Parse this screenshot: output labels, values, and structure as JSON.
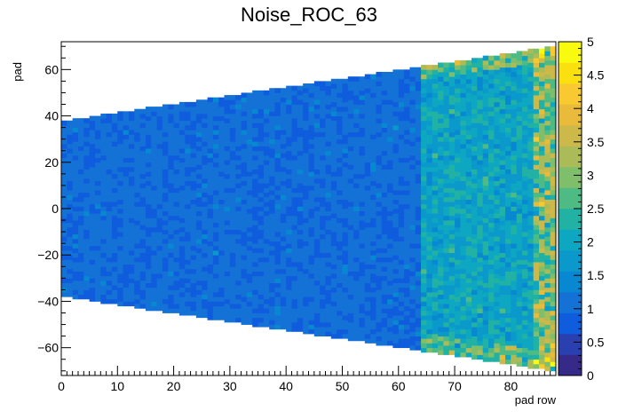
{
  "chart_data": {
    "type": "heatmap",
    "title": "Noise_ROC_63",
    "xlabel": "pad row",
    "ylabel": "pad",
    "xlim": [
      0,
      88
    ],
    "ylim": [
      -72,
      72
    ],
    "x_ticks": [
      "0",
      "10",
      "20",
      "30",
      "40",
      "50",
      "60",
      "70",
      "80"
    ],
    "y_ticks": [
      "−60",
      "−40",
      "−20",
      "0",
      "20",
      "40",
      "60"
    ],
    "colorbar": {
      "range": [
        0,
        5
      ],
      "ticks": [
        "0",
        "0.5",
        "1",
        "1.5",
        "2",
        "2.5",
        "3",
        "3.5",
        "4",
        "4.5",
        "5"
      ],
      "palette": [
        "#352a87",
        "#2a3fb0",
        "#0f5cdd",
        "#1472d6",
        "#0788d1",
        "#0b99cb",
        "#0ea7c2",
        "#21b2a4",
        "#4ebb85",
        "#7fbe6a",
        "#aabb57",
        "#cdb84a",
        "#eaba3a",
        "#f8c930",
        "#f9e00e",
        "#f9fb0e"
      ]
    },
    "rows": 88,
    "pads_at_row0": [
      -38,
      38
    ],
    "pads_at_row87": [
      -70,
      70
    ],
    "value_regions": [
      {
        "rows": [
          0,
          63
        ],
        "typical": 1.0
      },
      {
        "rows": [
          64,
          87
        ],
        "typical": 1.5,
        "edge_max": 5
      }
    ]
  }
}
